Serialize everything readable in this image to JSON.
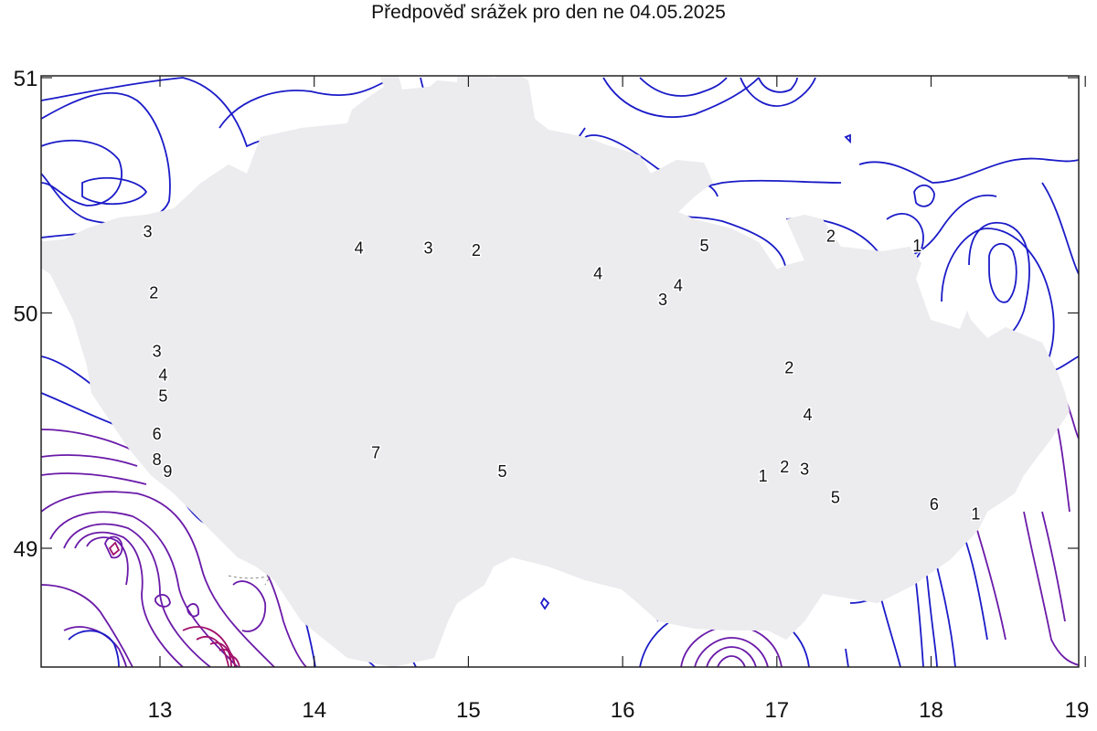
{
  "title": "Předpověď srážek pro den ne 04.05.2025",
  "map": {
    "lon_range": [
      12.2,
      19.0
    ],
    "lat_range": [
      48.5,
      51.0
    ],
    "x_ticks": [
      {
        "value": 13,
        "label": "13"
      },
      {
        "value": 14,
        "label": "14"
      },
      {
        "value": 15,
        "label": "15"
      },
      {
        "value": 16,
        "label": "16"
      },
      {
        "value": 17,
        "label": "17"
      },
      {
        "value": 18,
        "label": "18"
      },
      {
        "value": 19,
        "label": "19"
      }
    ],
    "y_ticks": [
      {
        "value": 49,
        "label": "49"
      },
      {
        "value": 50,
        "label": "50"
      },
      {
        "value": 51,
        "label": "51"
      }
    ],
    "contour_labels": [
      {
        "text": "3",
        "lon": 12.92,
        "lat": 50.35
      },
      {
        "text": "2",
        "lon": 12.96,
        "lat": 50.09
      },
      {
        "text": "3",
        "lon": 12.98,
        "lat": 49.84
      },
      {
        "text": "4",
        "lon": 13.02,
        "lat": 49.74
      },
      {
        "text": "5",
        "lon": 13.02,
        "lat": 49.65
      },
      {
        "text": "6",
        "lon": 12.98,
        "lat": 49.49
      },
      {
        "text": "8",
        "lon": 12.98,
        "lat": 49.38
      },
      {
        "text": "9",
        "lon": 13.05,
        "lat": 49.33
      },
      {
        "text": "4",
        "lon": 14.29,
        "lat": 50.28
      },
      {
        "text": "3",
        "lon": 14.74,
        "lat": 50.28
      },
      {
        "text": "2",
        "lon": 15.05,
        "lat": 50.27
      },
      {
        "text": "4",
        "lon": 15.84,
        "lat": 50.17
      },
      {
        "text": "3",
        "lon": 16.26,
        "lat": 50.06
      },
      {
        "text": "4",
        "lon": 16.36,
        "lat": 50.12
      },
      {
        "text": "5",
        "lon": 16.53,
        "lat": 50.29
      },
      {
        "text": "2",
        "lon": 17.35,
        "lat": 50.33
      },
      {
        "text": "1",
        "lon": 17.91,
        "lat": 50.29
      },
      {
        "text": "2",
        "lon": 17.08,
        "lat": 49.77
      },
      {
        "text": "4",
        "lon": 17.2,
        "lat": 49.57
      },
      {
        "text": "7",
        "lon": 14.4,
        "lat": 49.41
      },
      {
        "text": "5",
        "lon": 15.22,
        "lat": 49.33
      },
      {
        "text": "1",
        "lon": 16.91,
        "lat": 49.31
      },
      {
        "text": "2",
        "lon": 17.05,
        "lat": 49.35
      },
      {
        "text": "3",
        "lon": 17.18,
        "lat": 49.34
      },
      {
        "text": "5",
        "lon": 17.38,
        "lat": 49.22
      },
      {
        "text": "6",
        "lon": 18.02,
        "lat": 49.19
      },
      {
        "text": "1",
        "lon": 18.29,
        "lat": 49.15
      }
    ]
  },
  "colors": {
    "country_fill": "#ecebee",
    "border": "#ee1111",
    "region_lines": "#8a8a8a",
    "contour_low": "#1b1bc8",
    "contour_mid": "#6a1aa8",
    "contour_high": "#a1106a"
  }
}
